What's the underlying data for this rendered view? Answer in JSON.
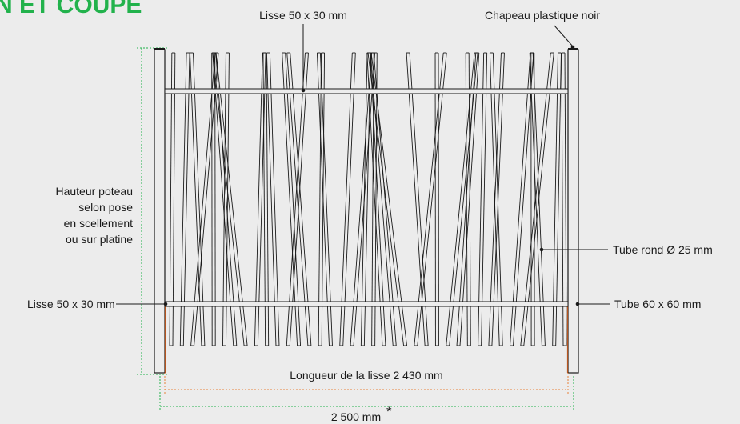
{
  "title_fragment": "N ET COUPE",
  "labels": {
    "lisse_top": "Lisse 50 x 30 mm",
    "chapeau": "Chapeau plastique noir",
    "hauteur_1": "Hauteur poteau",
    "hauteur_2": "selon pose",
    "hauteur_3": "en scellement",
    "hauteur_4": "ou sur platine",
    "tube_rond": "Tube rond Ø 25 mm",
    "lisse_bottom": "Lisse 50 x 30 mm",
    "tube_carre": "Tube 60 x 60 mm",
    "longueur_lisse": "Longueur de la lisse 2 430 mm",
    "longueur_totale": "2 500 mm",
    "asterisk": "*"
  },
  "colors": {
    "title": "#22b24c",
    "dimension_green": "#22b24c",
    "dimension_orange": "#e8823a",
    "line": "#1a1a1a",
    "post_base": "#b5541e"
  }
}
